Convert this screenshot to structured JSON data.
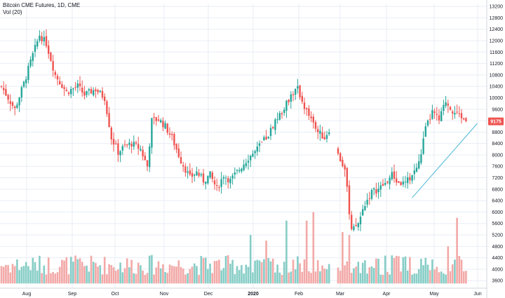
{
  "header": {
    "title": "Bitcoin CME Futures, 1D, CME",
    "indicator": "Vol (20)"
  },
  "colors": {
    "up": "#26a69a",
    "down": "#ef5350",
    "up_volume": "#86cdc6",
    "down_volume": "#f2a9a7",
    "trendline": "#4fb8d8",
    "price_label_bg": "#ef5350",
    "grid": "#e8eef5"
  },
  "price_label": "9175",
  "chart_data": {
    "type": "candlestick",
    "title": "Bitcoin CME Futures, 1D, CME",
    "y_ticks": [
      3600,
      4000,
      4400,
      4800,
      5200,
      5600,
      6000,
      6400,
      6800,
      7200,
      7600,
      8000,
      8400,
      8800,
      9200,
      9600,
      10000,
      10400,
      10800,
      11200,
      11600,
      12000,
      12400,
      12800,
      13200
    ],
    "ylim": [
      3360,
      13300
    ],
    "x_labels": [
      "Aug",
      "Sep",
      "Oct",
      "Nov",
      "Dec",
      "2020",
      "Feb",
      "Mar",
      "Apr",
      "May",
      "Jun"
    ],
    "grid": true,
    "last_price": 9175,
    "keypoints": [
      [
        0,
        10400
      ],
      [
        6,
        9600
      ],
      [
        10,
        10500
      ],
      [
        14,
        11500
      ],
      [
        17,
        12200
      ],
      [
        20,
        11900
      ],
      [
        24,
        10800
      ],
      [
        29,
        10200
      ],
      [
        34,
        10400
      ],
      [
        37,
        10100
      ],
      [
        42,
        10300
      ],
      [
        46,
        10000
      ],
      [
        49,
        8600
      ],
      [
        52,
        8100
      ],
      [
        55,
        8300
      ],
      [
        58,
        8400
      ],
      [
        62,
        8200
      ],
      [
        65,
        7600
      ],
      [
        67,
        9200
      ],
      [
        70,
        9250
      ],
      [
        73,
        9000
      ],
      [
        76,
        8600
      ],
      [
        80,
        7800
      ],
      [
        84,
        7200
      ],
      [
        87,
        7400
      ],
      [
        90,
        7100
      ],
      [
        93,
        7300
      ],
      [
        96,
        6800
      ],
      [
        99,
        7300
      ],
      [
        102,
        7100
      ],
      [
        106,
        7500
      ],
      [
        110,
        7900
      ],
      [
        113,
        8100
      ],
      [
        116,
        8400
      ],
      [
        119,
        8700
      ],
      [
        122,
        9200
      ],
      [
        125,
        9500
      ],
      [
        129,
        10100
      ],
      [
        132,
        10300
      ],
      [
        135,
        9700
      ],
      [
        138,
        9200
      ],
      [
        141,
        8800
      ],
      [
        144,
        8600
      ],
      [
        146,
        8900
      ],
      [
        150,
        8000
      ],
      [
        153,
        7500
      ],
      [
        156,
        5300
      ],
      [
        159,
        5600
      ],
      [
        162,
        6300
      ],
      [
        165,
        6700
      ],
      [
        168,
        6800
      ],
      [
        171,
        7000
      ],
      [
        174,
        7300
      ],
      [
        177,
        7000
      ],
      [
        180,
        7000
      ],
      [
        183,
        7300
      ],
      [
        186,
        7700
      ],
      [
        189,
        8900
      ],
      [
        192,
        9500
      ],
      [
        195,
        9200
      ],
      [
        198,
        9900
      ],
      [
        201,
        9500
      ],
      [
        204,
        9400
      ],
      [
        207,
        9175
      ]
    ],
    "gaps": [
      [
        147,
        149
      ]
    ],
    "volume_spikes": [
      [
        111,
        5200
      ],
      [
        118,
        5000
      ],
      [
        127,
        5700
      ],
      [
        136,
        5700
      ],
      [
        139,
        6000
      ],
      [
        152,
        5300
      ],
      [
        155,
        5200
      ],
      [
        203,
        5800
      ],
      [
        199,
        4800
      ]
    ]
  }
}
